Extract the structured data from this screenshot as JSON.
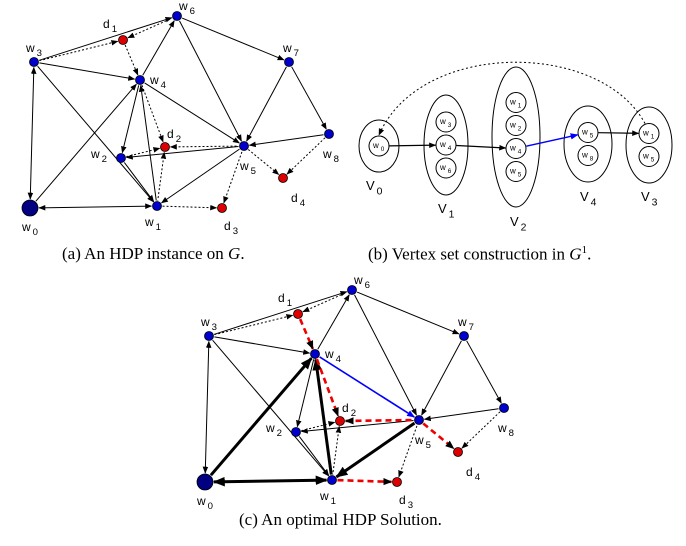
{
  "captions": {
    "a_prefix": "(a) An HDP instance on ",
    "a_math": "G",
    "a_suffix": ".",
    "b_prefix": "(b) Vertex set construction in ",
    "b_math": "G",
    "b_sup": "1",
    "b_suffix": ".",
    "c": "(c) An optimal HDP Solution."
  },
  "colors": {
    "waypoint": "#0000cc",
    "delivery": "#dd0000",
    "depot": "#000080",
    "highlight": "#0000ff",
    "solution_dashed": "#ee0000",
    "edge": "#000000"
  },
  "graph": {
    "nodes": [
      {
        "id": "w0",
        "base": "w",
        "sub": "0",
        "kind": "depot"
      },
      {
        "id": "w1",
        "base": "w",
        "sub": "1",
        "kind": "waypoint"
      },
      {
        "id": "w2",
        "base": "w",
        "sub": "2",
        "kind": "waypoint"
      },
      {
        "id": "w3",
        "base": "w",
        "sub": "3",
        "kind": "waypoint"
      },
      {
        "id": "w4",
        "base": "w",
        "sub": "4",
        "kind": "waypoint"
      },
      {
        "id": "w5",
        "base": "w",
        "sub": "5",
        "kind": "waypoint"
      },
      {
        "id": "w6",
        "base": "w",
        "sub": "6",
        "kind": "waypoint"
      },
      {
        "id": "w7",
        "base": "w",
        "sub": "7",
        "kind": "waypoint"
      },
      {
        "id": "w8",
        "base": "w",
        "sub": "8",
        "kind": "waypoint"
      },
      {
        "id": "d1",
        "base": "d",
        "sub": "1",
        "kind": "delivery"
      },
      {
        "id": "d2",
        "base": "d",
        "sub": "2",
        "kind": "delivery"
      },
      {
        "id": "d3",
        "base": "d",
        "sub": "3",
        "kind": "delivery"
      },
      {
        "id": "d4",
        "base": "d",
        "sub": "4",
        "kind": "delivery"
      }
    ],
    "edges": [
      {
        "from": "w0",
        "to": "w3",
        "style": "solid",
        "dir": "both"
      },
      {
        "from": "w0",
        "to": "w1",
        "style": "solid",
        "dir": "both"
      },
      {
        "from": "w0",
        "to": "w4",
        "style": "solid",
        "dir": "to"
      },
      {
        "from": "w3",
        "to": "w4",
        "style": "solid",
        "dir": "to"
      },
      {
        "from": "w3",
        "to": "w6",
        "style": "solid",
        "dir": "to"
      },
      {
        "from": "w3",
        "to": "w1",
        "style": "solid",
        "dir": "to"
      },
      {
        "from": "w4",
        "to": "w2",
        "style": "solid",
        "dir": "to"
      },
      {
        "from": "w1",
        "to": "w4",
        "style": "solid",
        "dir": "to"
      },
      {
        "from": "w4",
        "to": "w6",
        "style": "solid",
        "dir": "to"
      },
      {
        "from": "w4",
        "to": "w5",
        "style": "solid",
        "dir": "to"
      },
      {
        "from": "w2",
        "to": "w1",
        "style": "solid",
        "dir": "to"
      },
      {
        "from": "w5",
        "to": "w2",
        "style": "solid",
        "dir": "to"
      },
      {
        "from": "w5",
        "to": "w1",
        "style": "solid",
        "dir": "to"
      },
      {
        "from": "w6",
        "to": "w5",
        "style": "solid",
        "dir": "to"
      },
      {
        "from": "w6",
        "to": "w7",
        "style": "solid",
        "dir": "to"
      },
      {
        "from": "w7",
        "to": "w5",
        "style": "solid",
        "dir": "to"
      },
      {
        "from": "w7",
        "to": "w8",
        "style": "solid",
        "dir": "to"
      },
      {
        "from": "w8",
        "to": "w5",
        "style": "solid",
        "dir": "to"
      },
      {
        "from": "w3",
        "to": "d1",
        "style": "dotted",
        "dir": "to"
      },
      {
        "from": "d1",
        "to": "w6",
        "style": "dotted",
        "dir": "from"
      },
      {
        "from": "d1",
        "to": "w4",
        "style": "dotted",
        "dir": "to"
      },
      {
        "from": "w4",
        "to": "d2",
        "style": "dotted",
        "dir": "to"
      },
      {
        "from": "w2",
        "to": "d2",
        "style": "dotted",
        "dir": "to"
      },
      {
        "from": "d2",
        "to": "w1",
        "style": "dotted",
        "dir": "from"
      },
      {
        "from": "d2",
        "to": "w5",
        "style": "dotted",
        "dir": "from"
      },
      {
        "from": "w1",
        "to": "d3",
        "style": "dotted",
        "dir": "to"
      },
      {
        "from": "d3",
        "to": "w5",
        "style": "dotted",
        "dir": "from"
      },
      {
        "from": "w5",
        "to": "d4",
        "style": "dotted",
        "dir": "to"
      },
      {
        "from": "w8",
        "to": "d4",
        "style": "dotted",
        "dir": "to"
      }
    ],
    "solution": {
      "bold": [
        [
          "w0",
          "w4"
        ],
        [
          "w1",
          "w4"
        ],
        [
          "w5",
          "w1"
        ],
        [
          "w1",
          "w0"
        ]
      ],
      "dashed_red": [
        [
          "d1",
          "w4"
        ],
        [
          "w4",
          "d2"
        ],
        [
          "d2",
          "w5"
        ],
        [
          "w5",
          "d4"
        ],
        [
          "w1",
          "d3"
        ]
      ],
      "blue": [
        [
          "w4",
          "w5"
        ]
      ]
    }
  },
  "construction": {
    "sets": [
      {
        "label_base": "V",
        "label_sub": "0",
        "items": [
          "0"
        ]
      },
      {
        "label_base": "V",
        "label_sub": "1",
        "items": [
          "3",
          "4",
          "6"
        ]
      },
      {
        "label_base": "V",
        "label_sub": "2",
        "items": [
          "1",
          "2",
          "4",
          "5"
        ]
      },
      {
        "label_base": "V",
        "label_sub": "4",
        "items": [
          "5",
          "8"
        ]
      },
      {
        "label_base": "V",
        "label_sub": "3",
        "items": [
          "1",
          "5"
        ]
      }
    ],
    "item_prefix": "w"
  }
}
